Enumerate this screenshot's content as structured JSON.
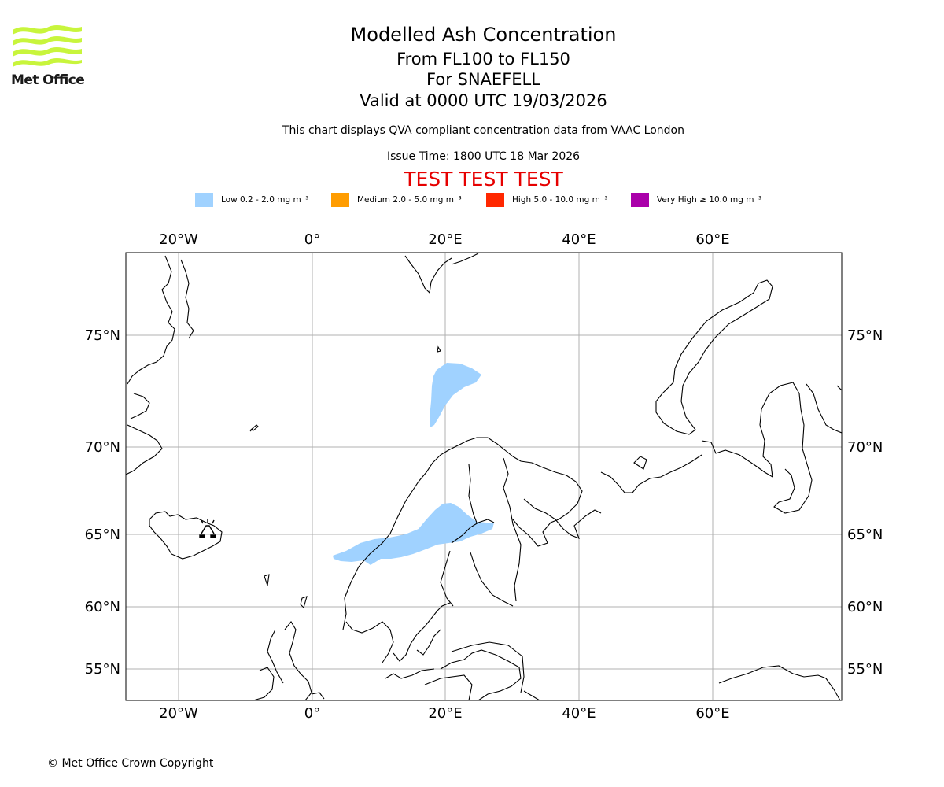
{
  "header": {
    "title": "Modelled Ash Concentration",
    "levels": "From FL100 to FL150",
    "volcano": "For SNAEFELL",
    "valid": "Valid at 0000 UTC 19/03/2026",
    "subtitle": "This chart displays QVA compliant concentration data from VAAC London",
    "issue_time": "Issue Time: 1800 UTC 18 Mar 2026",
    "test_banner": "TEST TEST TEST"
  },
  "logo": {
    "text": "Met Office",
    "color": "#c8f53c"
  },
  "legend": [
    {
      "label": "Low 0.2 - 2.0 mg m⁻³",
      "color": "#a0d2ff"
    },
    {
      "label": "Medium 2.0 - 5.0 mg m⁻³",
      "color": "#ff9c00"
    },
    {
      "label": "High 5.0 - 10.0 mg m⁻³",
      "color": "#ff2800"
    },
    {
      "label": "Very High  ≥  10.0 mg m⁻³",
      "color": "#aa00aa"
    }
  ],
  "map": {
    "lon_ticks": [
      "20°W",
      "0°",
      "20°E",
      "40°E",
      "60°E"
    ],
    "lat_ticks": [
      "75°N",
      "70°N",
      "65°N",
      "60°N",
      "55°N"
    ],
    "ash_color": "#a0d2ff",
    "volcano_icon": "volcano-icon"
  },
  "footer": {
    "copyright": "© Met Office Crown Copyright"
  }
}
